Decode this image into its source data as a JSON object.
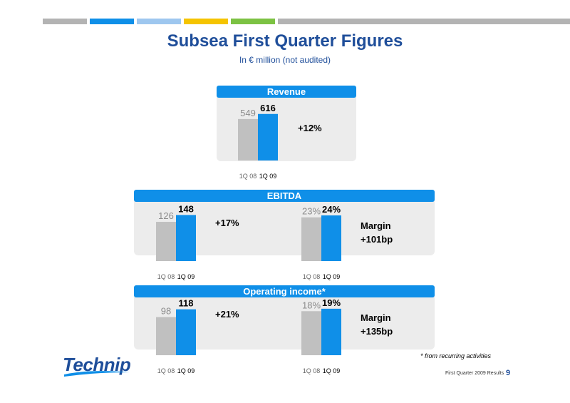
{
  "header": {
    "color_bar": [
      "#b3b3b3",
      "#0f8fe8",
      "#9ec7ef",
      "#f5c400",
      "#7cc243",
      "#b3b3b3"
    ],
    "title": "Subsea First Quarter Figures",
    "subtitle": "In € million (not audited)"
  },
  "colors": {
    "prior": "#c0c0c0",
    "current": "#0f8fe8",
    "panel": "#ececec",
    "accent": "#1f4e9a"
  },
  "panels": {
    "revenue": {
      "label": "Revenue",
      "change": "+12%"
    },
    "ebitda": {
      "label": "EBITDA",
      "change": "+17%",
      "margin_label": "Margin",
      "margin_change": "+101bp"
    },
    "operating": {
      "label": "Operating income*",
      "change": "+21%",
      "margin_label": "Margin",
      "margin_change": "+135bp"
    }
  },
  "chart_data": [
    {
      "type": "bar",
      "id": "revenue",
      "categories": [
        "1Q 08",
        "1Q 09"
      ],
      "values": [
        549,
        616
      ],
      "value_labels": [
        "549",
        "616"
      ],
      "ylim": [
        0,
        680
      ]
    },
    {
      "type": "bar",
      "id": "ebitda",
      "categories": [
        "1Q 08",
        "1Q 09"
      ],
      "values": [
        126,
        148
      ],
      "value_labels": [
        "126",
        "148"
      ],
      "ylim": [
        0,
        165
      ]
    },
    {
      "type": "bar",
      "id": "ebitda-margin",
      "categories": [
        "1Q 08",
        "1Q 09"
      ],
      "values": [
        23,
        24
      ],
      "value_labels": [
        "23%",
        "24%"
      ],
      "ylim": [
        0,
        27
      ]
    },
    {
      "type": "bar",
      "id": "operating",
      "categories": [
        "1Q 08",
        "1Q 09"
      ],
      "values": [
        98,
        118
      ],
      "value_labels": [
        "98",
        "118"
      ],
      "ylim": [
        0,
        132
      ]
    },
    {
      "type": "bar",
      "id": "operating-margin",
      "categories": [
        "1Q 08",
        "1Q 09"
      ],
      "values": [
        18,
        19
      ],
      "value_labels": [
        "18%",
        "19%"
      ],
      "ylim": [
        0,
        21
      ]
    }
  ],
  "footnote": "* from recurring activities",
  "logo": {
    "text": "Technip"
  },
  "footer": {
    "label": "First Quarter 2009 Results",
    "page": "9"
  }
}
